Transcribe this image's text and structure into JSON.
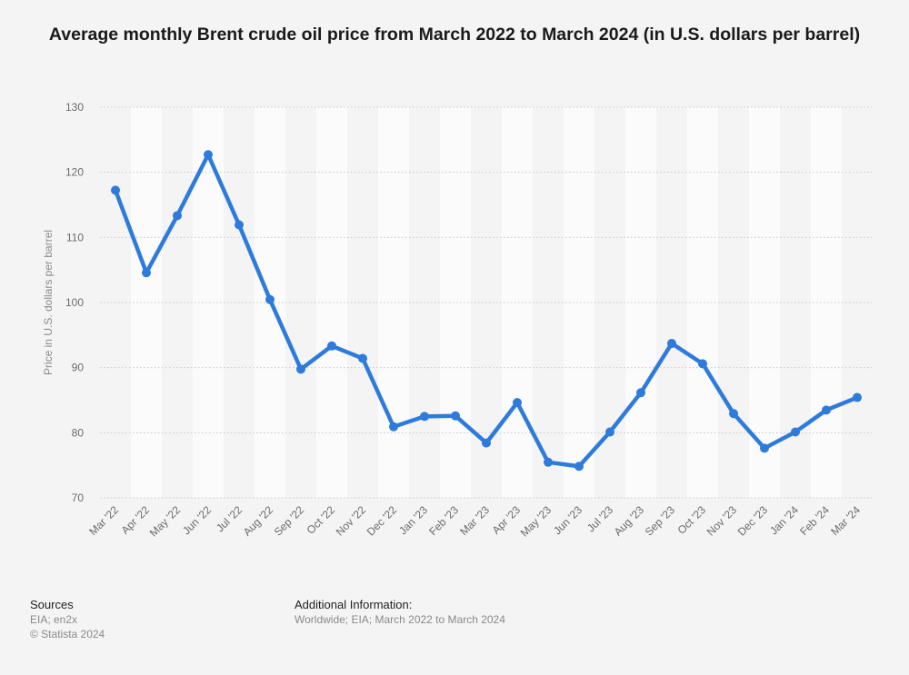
{
  "chart_data": {
    "type": "line",
    "title": "Average monthly Brent crude oil price from March 2022 to March 2024 (in U.S. dollars per barrel)",
    "ylabel": "Price in U.S. dollars per barrel",
    "xlabel": "",
    "ylim": [
      70,
      130
    ],
    "yticks": [
      70,
      80,
      90,
      100,
      110,
      120,
      130
    ],
    "grid": true,
    "categories": [
      "Mar '22",
      "Apr '22",
      "May '22",
      "Jun '22",
      "Jul '22",
      "Aug '22",
      "Sep '22",
      "Oct '22",
      "Nov '22",
      "Dec '22",
      "Jan '23",
      "Feb '23",
      "Mar '23",
      "Apr '23",
      "May '23",
      "Jun '23",
      "Jul '23",
      "Aug '23",
      "Sep '23",
      "Oct '23",
      "Nov '23",
      "Dec '23",
      "Jan '24",
      "Feb '24",
      "Mar '24"
    ],
    "series": [
      {
        "values": [
          117.25,
          104.58,
          113.34,
          122.71,
          111.93,
          100.45,
          89.76,
          93.33,
          91.42,
          80.92,
          82.5,
          82.59,
          78.43,
          84.64,
          75.47,
          74.84,
          80.11,
          86.15,
          93.72,
          90.6,
          82.94,
          77.63,
          80.12,
          83.48,
          85.41
        ],
        "color": "#2e7bdb"
      }
    ]
  },
  "footer": {
    "sources_heading": "Sources",
    "sources_line1": "EIA; en2x",
    "sources_line2": "© Statista 2024",
    "addinfo_heading": "Additional Information:",
    "addinfo_text": "Worldwide; EIA; March 2022 to March 2024"
  }
}
